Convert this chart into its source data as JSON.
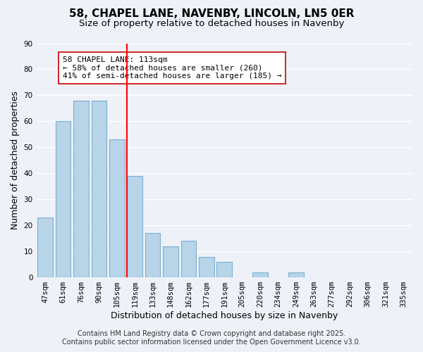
{
  "title": "58, CHAPEL LANE, NAVENBY, LINCOLN, LN5 0ER",
  "subtitle": "Size of property relative to detached houses in Navenby",
  "xlabel": "Distribution of detached houses by size in Navenby",
  "ylabel": "Number of detached properties",
  "bins": [
    "47sqm",
    "61sqm",
    "76sqm",
    "90sqm",
    "105sqm",
    "119sqm",
    "133sqm",
    "148sqm",
    "162sqm",
    "177sqm",
    "191sqm",
    "205sqm",
    "220sqm",
    "234sqm",
    "249sqm",
    "263sqm",
    "277sqm",
    "292sqm",
    "306sqm",
    "321sqm",
    "335sqm"
  ],
  "counts": [
    23,
    60,
    68,
    68,
    53,
    39,
    17,
    12,
    14,
    8,
    6,
    0,
    2,
    0,
    2,
    0,
    0,
    0,
    0,
    0,
    0
  ],
  "bar_color": "#b8d4e8",
  "bar_edge_color": "#7aafd4",
  "vline_x_idx": 5,
  "vline_color": "red",
  "annotation_line1": "58 CHAPEL LANE: 113sqm",
  "annotation_line2": "← 58% of detached houses are smaller (260)",
  "annotation_line3": "41% of semi-detached houses are larger (185) →",
  "ylim": [
    0,
    90
  ],
  "yticks": [
    0,
    10,
    20,
    30,
    40,
    50,
    60,
    70,
    80,
    90
  ],
  "footer_line1": "Contains HM Land Registry data © Crown copyright and database right 2025.",
  "footer_line2": "Contains public sector information licensed under the Open Government Licence v3.0.",
  "bg_color": "#eef2f8",
  "grid_color": "#ffffff",
  "title_fontsize": 11,
  "subtitle_fontsize": 9.5,
  "axis_label_fontsize": 9,
  "tick_fontsize": 7.5,
  "footer_fontsize": 7,
  "annotation_fontsize": 8
}
